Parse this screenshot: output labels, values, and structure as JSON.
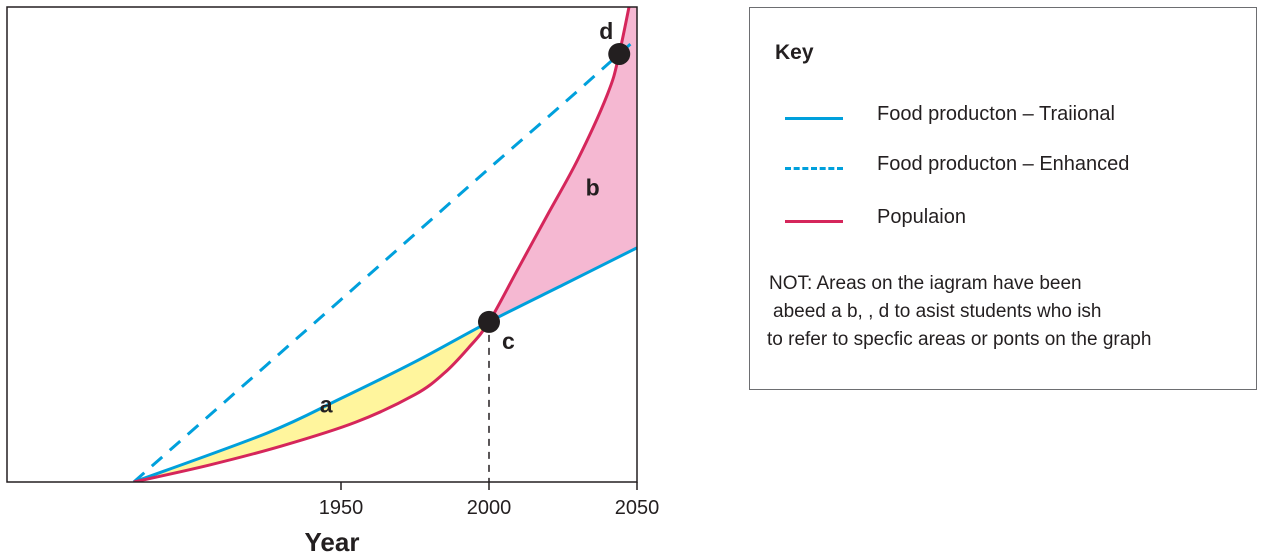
{
  "chart_data": {
    "type": "line",
    "title": "",
    "xlabel": "Year",
    "ylabel": "",
    "x_ticks": [
      1950,
      2000,
      2050
    ],
    "xlim": [
      1880,
      2050
    ],
    "ylim": [
      0,
      100
    ],
    "grid": false,
    "legend_position": "right",
    "series": [
      {
        "name": "Food producton – Traiional",
        "style": "solid",
        "color": "#00a0dc",
        "x": [
          1880,
          1925,
          1950,
          1975,
          2000,
          2025,
          2050
        ],
        "y": [
          0,
          10.3,
          17.6,
          25.3,
          33.7,
          41.5,
          49.3
        ]
      },
      {
        "name": "Food producton – Enhanced",
        "style": "dashed",
        "color": "#00a0dc",
        "x": [
          1880,
          1925,
          1950,
          1975,
          2000,
          2025,
          2044,
          2050
        ],
        "y": [
          0,
          24.7,
          38.4,
          52.2,
          66.0,
          79.6,
          90.1,
          93.4
        ]
      },
      {
        "name": "Populaion",
        "style": "solid",
        "color": "#d5265b",
        "x": [
          1880,
          1905,
          1930,
          1955,
          1975,
          1985,
          1993,
          2000,
          2010,
          2020,
          2030,
          2040,
          2044,
          2050
        ],
        "y": [
          0,
          3.5,
          7.6,
          12.6,
          18.4,
          23.0,
          28.2,
          33.7,
          45.1,
          56.5,
          67.9,
          81.6,
          90.1,
          108.5
        ]
      }
    ],
    "points": [
      {
        "label": "c",
        "x": 2000,
        "y": 33.7
      },
      {
        "label": "d",
        "x": 2044,
        "y": 90.1
      }
    ],
    "areas": [
      {
        "label": "a",
        "between": [
          "Food producton – Traiional",
          "Populaion"
        ],
        "x_range": [
          1880,
          2000
        ],
        "color": "#fff59d"
      },
      {
        "label": "b",
        "between": [
          "Populaion",
          "Food producton – Traiional"
        ],
        "x_range": [
          2000,
          2050
        ],
        "color": "#f5b8d2"
      }
    ]
  },
  "key": {
    "title": "Key",
    "items": [
      {
        "label": "Food producton – Traiional"
      },
      {
        "label": "Food producton – Enhanced"
      },
      {
        "label": "Populaion"
      }
    ],
    "note_lines": [
      "NOT: Areas on the iagram have been",
      "abeed a b, , d to asist students who ish",
      "to refer to specfic areas or ponts on the graph"
    ]
  }
}
